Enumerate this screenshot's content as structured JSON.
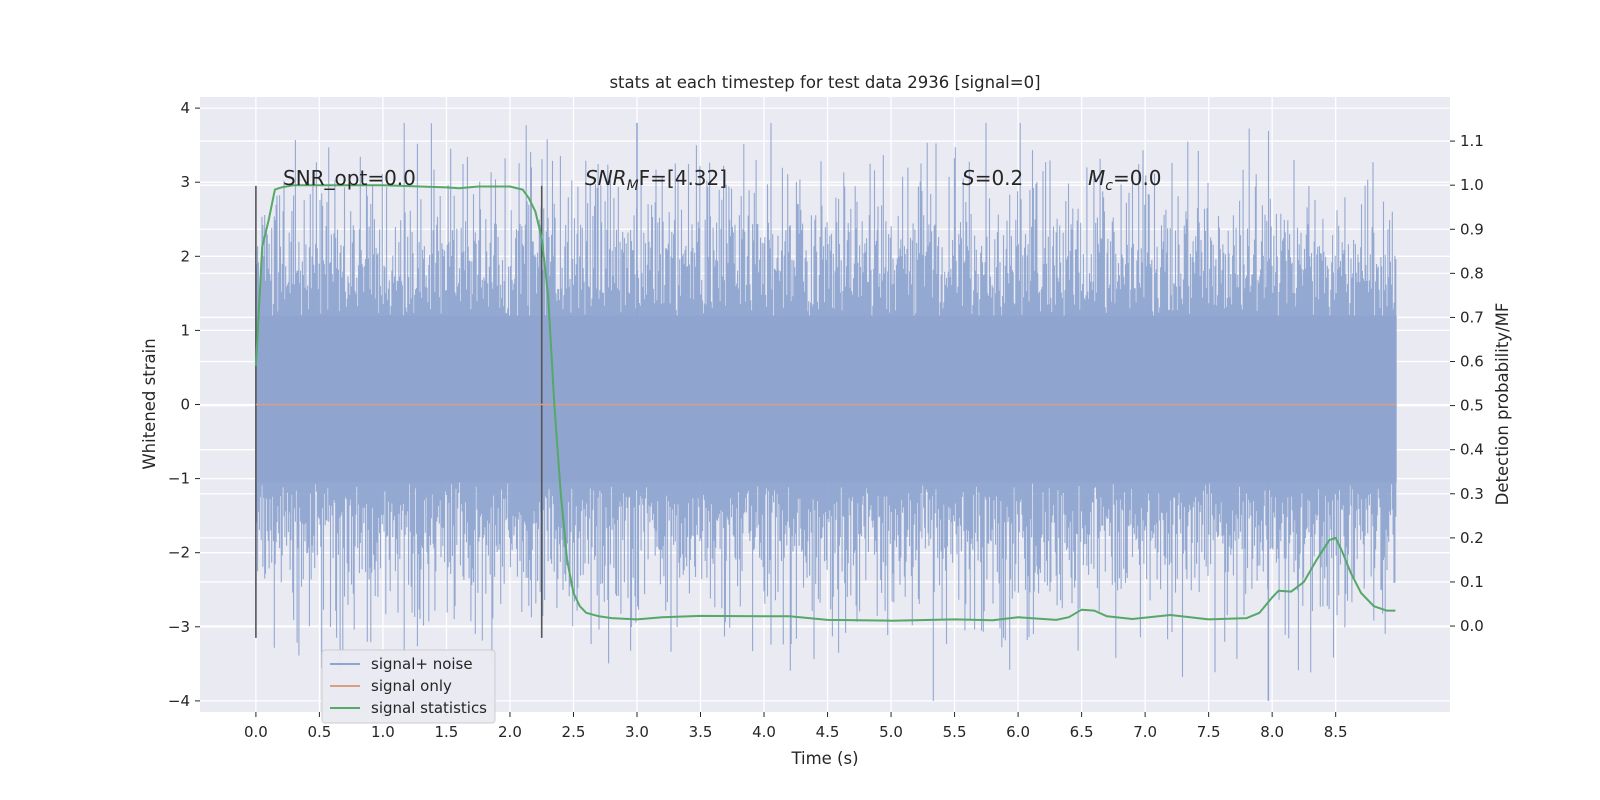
{
  "chart_data": {
    "type": "line",
    "title": "stats at each timestep for test data 2936 [signal=0]",
    "xlabel": "Time (s)",
    "ylabel": "Whitened strain",
    "y2label": "Detection probability/MF",
    "xlim": [
      -0.44,
      9.4
    ],
    "ylim": [
      -4.15,
      4.15
    ],
    "y2lim": [
      -0.195,
      1.2
    ],
    "xticks": [
      "0.0",
      "0.5",
      "1.0",
      "1.5",
      "2.0",
      "2.5",
      "3.0",
      "3.5",
      "4.0",
      "4.5",
      "5.0",
      "5.5",
      "6.0",
      "6.5",
      "7.0",
      "7.5",
      "8.0",
      "8.5"
    ],
    "yticks": [
      "4",
      "3",
      "2",
      "1",
      "0",
      "−1",
      "−2",
      "−3",
      "−4"
    ],
    "y2ticks": [
      "1.1",
      "1.0",
      "0.9",
      "0.8",
      "0.7",
      "0.6",
      "0.5",
      "0.4",
      "0.3",
      "0.2",
      "0.1",
      "0.0"
    ],
    "grid": true,
    "legend_position": "lower-left",
    "annotations": {
      "snr_opt": "SNR_opt=0.0",
      "snr_mf_prefix": "SNR",
      "snr_mf_sub": "M",
      "snr_mf_suffix": "F=[4.32]",
      "s_label": "S",
      "s_value": "=0.2",
      "mc_label": "M",
      "mc_sub": "c",
      "mc_value": "=0.0"
    },
    "vertical_markers": [
      0.0,
      2.25
    ],
    "series": [
      {
        "name": "signal+ noise",
        "color": "#8fa5d0",
        "noise_range_x": [
          0.0,
          8.98
        ],
        "typical_envelope": [
          -1.7,
          2.0
        ],
        "max_value": 3.8,
        "min_value": -4.0
      },
      {
        "name": "signal only",
        "color": "#dd9d82",
        "x": [
          0.0,
          8.98
        ],
        "y": [
          0.0,
          0.0
        ]
      },
      {
        "name": "signal statistics",
        "color": "#55a868",
        "axis": "right",
        "x": [
          0.0,
          0.05,
          0.1,
          0.15,
          0.2,
          0.3,
          0.5,
          1.0,
          1.5,
          1.6,
          1.75,
          2.0,
          2.1,
          2.15,
          2.2,
          2.25,
          2.3,
          2.35,
          2.4,
          2.45,
          2.5,
          2.55,
          2.6,
          2.7,
          2.8,
          3.0,
          3.2,
          3.5,
          4.0,
          4.2,
          4.5,
          5.0,
          5.5,
          5.8,
          6.0,
          6.3,
          6.4,
          6.5,
          6.6,
          6.7,
          6.9,
          7.2,
          7.5,
          7.8,
          7.9,
          8.0,
          8.05,
          8.15,
          8.25,
          8.35,
          8.45,
          8.5,
          8.55,
          8.62,
          8.7,
          8.8,
          8.9,
          8.97
        ],
        "y": [
          0.59,
          0.86,
          0.92,
          0.99,
          0.995,
          1.0,
          1.0,
          1.0,
          0.995,
          0.993,
          0.997,
          0.997,
          0.99,
          0.97,
          0.94,
          0.88,
          0.75,
          0.5,
          0.3,
          0.15,
          0.075,
          0.045,
          0.03,
          0.022,
          0.018,
          0.015,
          0.02,
          0.023,
          0.022,
          0.022,
          0.014,
          0.012,
          0.015,
          0.013,
          0.02,
          0.014,
          0.02,
          0.037,
          0.035,
          0.022,
          0.016,
          0.025,
          0.015,
          0.018,
          0.03,
          0.065,
          0.08,
          0.078,
          0.1,
          0.15,
          0.195,
          0.2,
          0.17,
          0.12,
          0.075,
          0.045,
          0.035,
          0.035
        ]
      }
    ]
  }
}
